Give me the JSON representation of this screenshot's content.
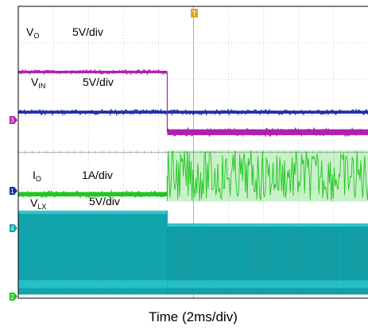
{
  "chart_data": {
    "type": "line",
    "title": "",
    "xlabel": "Time (2ms/div)",
    "ylabel": "",
    "grid": true,
    "x_divisions": 10,
    "y_divisions": 8,
    "trigger_marker": "T",
    "trigger_time_ms": 8.5,
    "channel_markers": [
      "3",
      "1",
      "4",
      "2"
    ],
    "series": [
      {
        "name": "V",
        "subscript": "O",
        "scale": "5V/div",
        "color": "#b020b0",
        "segments": [
          {
            "from_div": 0,
            "to_div": 4.25,
            "level_div": 6.2,
            "noise_div": 0.03
          },
          {
            "from_div": 4.25,
            "to_div": 10,
            "level_div": 4.55,
            "noise_div": 0.08
          }
        ]
      },
      {
        "name": "V",
        "subscript": "IN",
        "scale": "5V/div",
        "color": "#1f2fa8",
        "segments": [
          {
            "from_div": 0,
            "to_div": 10,
            "level_div": 5.1,
            "noise_div": 0.04
          }
        ]
      },
      {
        "name": "I",
        "subscript": "O",
        "scale": "1A/div",
        "color": "#22c622",
        "segments": [
          {
            "from_div": 0,
            "to_div": 4.25,
            "level_div": 2.85,
            "noise_div": 0.06
          },
          {
            "from_div": 4.25,
            "to_div": 10,
            "level_div": 3.35,
            "noise_div": 0.7
          }
        ]
      },
      {
        "name": "V",
        "subscript": "LX",
        "scale": "5V/div",
        "color": "#15a8b0",
        "band": true,
        "segments": [
          {
            "from_div": 0,
            "to_div": 4.25,
            "high_div": 2.4,
            "low_div": 0.1
          },
          {
            "from_div": 4.25,
            "to_div": 10,
            "high_div": 2.05,
            "low_div": 0.1
          }
        ]
      }
    ]
  },
  "labels": {
    "vo_name": "V",
    "vo_sub": "O",
    "vo_scale": "5V/div",
    "vin_name": "V",
    "vin_sub": "IN",
    "vin_scale": "5V/div",
    "io_name": "I",
    "io_sub": "O",
    "io_scale": "1A/div",
    "vlx_name": "V",
    "vlx_sub": "LX",
    "vlx_scale": "5V/div",
    "x_axis_title": "Time (2ms/div)",
    "trigger": "T",
    "ch3": "3",
    "ch1": "1",
    "ch4": "4",
    "ch2": "2"
  },
  "colors": {
    "grid": "#bfbfbf",
    "frame": "#000000",
    "background": "#ffffff"
  }
}
